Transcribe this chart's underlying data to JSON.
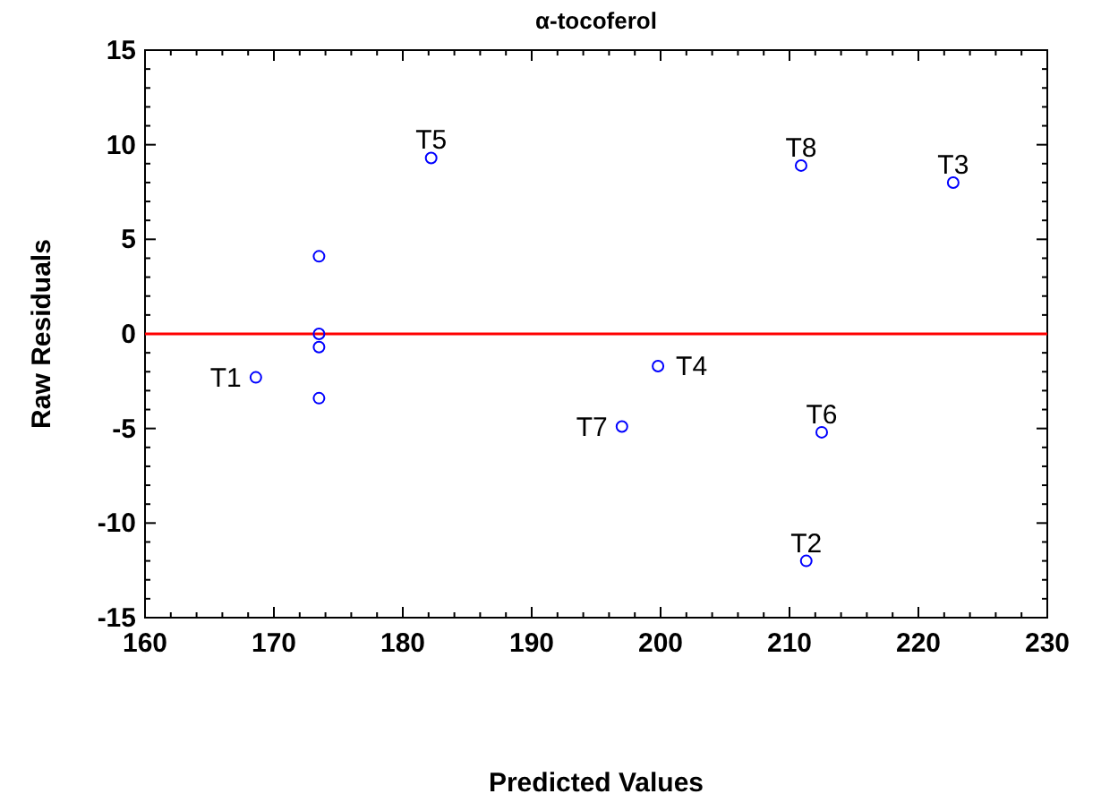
{
  "chart_data": {
    "type": "scatter",
    "title": "α-tocoferol",
    "xlabel": "Predicted Values",
    "ylabel": "Raw Residuals",
    "series": [
      {
        "color": "#0000ff",
        "x": [
          168.6,
          173.5,
          173.5,
          173.5,
          173.5,
          182.2,
          199.8,
          197.0,
          210.9,
          222.7,
          212.5,
          211.3
        ],
        "values": [
          -2.3,
          4.1,
          0.0,
          -0.7,
          -3.4,
          9.3,
          -1.7,
          -4.9,
          8.9,
          8.0,
          -5.2,
          -12.0
        ]
      }
    ],
    "annotations": [
      {
        "text": "T1",
        "x": 168.6,
        "y": -2.3
      },
      {
        "text": "T5",
        "x": 182.2,
        "y": 9.3
      },
      {
        "text": "T4",
        "x": 199.8,
        "y": -1.7
      },
      {
        "text": "T7",
        "x": 197.0,
        "y": -4.9
      },
      {
        "text": "T8",
        "x": 210.9,
        "y": 8.9
      },
      {
        "text": "T3",
        "x": 222.7,
        "y": 8.0
      },
      {
        "text": "T6",
        "x": 212.5,
        "y": -5.2
      },
      {
        "text": "T2",
        "x": 211.3,
        "y": -12.0
      }
    ],
    "xlim": [
      160,
      230
    ],
    "xticks": [
      160,
      170,
      180,
      190,
      200,
      210,
      220,
      230
    ],
    "ylim": [
      -15,
      15
    ],
    "yticks": [
      -15,
      -10,
      -5,
      0,
      5,
      10,
      15
    ],
    "ref_lines": [
      {
        "axis": "y",
        "value": 0,
        "color": "#ff0000"
      }
    ],
    "grid": false,
    "marker": "circle"
  }
}
